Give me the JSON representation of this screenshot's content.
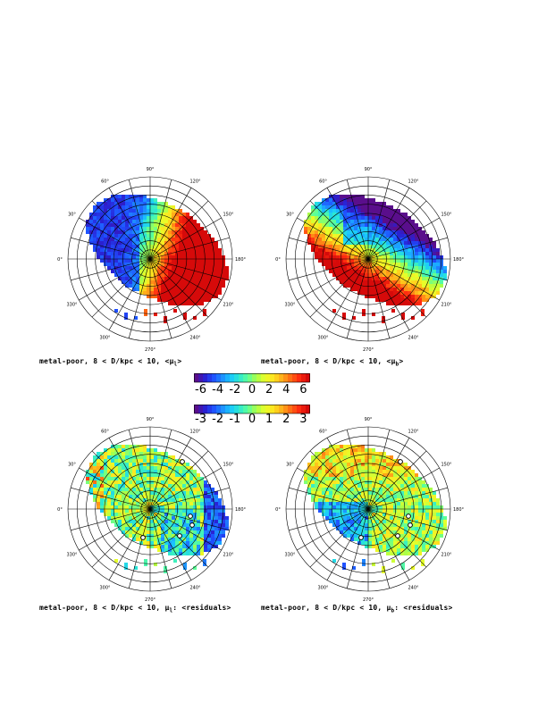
{
  "angle_labels": [
    "0°",
    "30°",
    "60°",
    "90°",
    "120°",
    "150°",
    "180°",
    "210°",
    "240°",
    "270°",
    "300°",
    "330°"
  ],
  "colors": {
    "palette": [
      "#5a0e8c",
      "#2a1fd0",
      "#1f4fff",
      "#1e8cff",
      "#19c8ff",
      "#2ee8d0",
      "#5cff9a",
      "#a8ff4a",
      "#e6ff2a",
      "#ffe21f",
      "#ffad1a",
      "#ff6a14",
      "#ff2a10",
      "#d60a0a"
    ],
    "grid": "#000000",
    "empty": "#ffffff"
  },
  "chart_data": [
    {
      "type": "heatmap",
      "projection": "polar",
      "caption": "metal-poor, 8 < D/kpc < 10, <μ",
      "caption_sub": "l",
      "caption_tail": ">",
      "pattern": "mu_l",
      "value_range": [
        -6,
        6
      ]
    },
    {
      "type": "heatmap",
      "projection": "polar",
      "caption": "metal-poor, 8 < D/kpc < 10, <μ",
      "caption_sub": "b",
      "caption_tail": ">",
      "pattern": "mu_b",
      "value_range": [
        -6,
        6
      ]
    },
    {
      "type": "heatmap",
      "projection": "polar",
      "caption": "metal-poor, 8 < D/kpc < 10, μ",
      "caption_sub": "l",
      "caption_tail": ": <residuals>",
      "pattern": "res_l",
      "value_range": [
        -3,
        3
      ]
    },
    {
      "type": "heatmap",
      "projection": "polar",
      "caption": "metal-poor, 8 < D/kpc < 10, μ",
      "caption_sub": "b",
      "caption_tail": ": <residuals>",
      "pattern": "res_b",
      "value_range": [
        -3,
        3
      ]
    }
  ],
  "colorbars": [
    {
      "ticks": [
        "-6",
        "-4",
        "-2",
        "0",
        "2",
        "4",
        "6"
      ]
    },
    {
      "ticks": [
        "-3",
        "-2",
        "-1",
        "0",
        "1",
        "2",
        "3"
      ]
    }
  ]
}
